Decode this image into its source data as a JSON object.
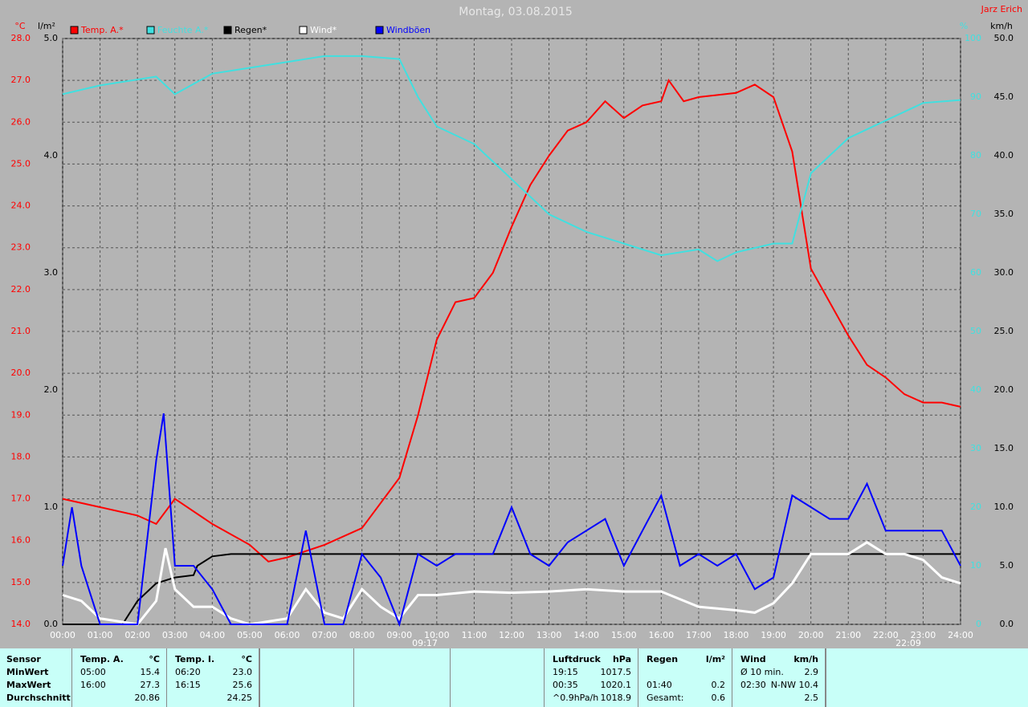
{
  "chart_data": {
    "type": "line",
    "title": "Montag, 03.08.2015",
    "author": "Jarz Erich",
    "xlim": [
      0,
      24
    ],
    "xticks": [
      {
        "value": 0,
        "label": "00:00"
      },
      {
        "value": 1,
        "label": "01:00"
      },
      {
        "value": 2,
        "label": "02:00"
      },
      {
        "value": 3,
        "label": "03:00"
      },
      {
        "value": 4,
        "label": "04:00"
      },
      {
        "value": 5,
        "label": "05:00"
      },
      {
        "value": 6,
        "label": "06:00"
      },
      {
        "value": 7,
        "label": "07:00"
      },
      {
        "value": 8,
        "label": "08:00"
      },
      {
        "value": 9,
        "label": "09:00"
      },
      {
        "value": 10,
        "label": "10:00"
      },
      {
        "value": 11,
        "label": "11:00"
      },
      {
        "value": 12,
        "label": "12:00"
      },
      {
        "value": 13,
        "label": "13:00"
      },
      {
        "value": 14,
        "label": "14:00"
      },
      {
        "value": 15,
        "label": "15:00"
      },
      {
        "value": 16,
        "label": "16:00"
      },
      {
        "value": 17,
        "label": "17:00"
      },
      {
        "value": 18,
        "label": "18:00"
      },
      {
        "value": 19,
        "label": "19:00"
      },
      {
        "value": 20,
        "label": "20:00"
      },
      {
        "value": 21,
        "label": "21:00"
      },
      {
        "value": 22,
        "label": "22:00"
      },
      {
        "value": 23,
        "label": "23:00"
      },
      {
        "value": 24,
        "label": "24:00"
      }
    ],
    "grid": true,
    "sun_markers": [
      "09:17",
      "22:09"
    ],
    "axes": {
      "temp": {
        "label": "°C",
        "color": "#ff0000",
        "lim": [
          14,
          28
        ],
        "ticks": [
          {
            "value": 14,
            "label": "14.0"
          },
          {
            "value": 15,
            "label": "15.0"
          },
          {
            "value": 16,
            "label": "16.0"
          },
          {
            "value": 17,
            "label": "17.0"
          },
          {
            "value": 18,
            "label": "18.0"
          },
          {
            "value": 19,
            "label": "19.0"
          },
          {
            "value": 20,
            "label": "20.0"
          },
          {
            "value": 21,
            "label": "21.0"
          },
          {
            "value": 22,
            "label": "22.0"
          },
          {
            "value": 23,
            "label": "23.0"
          },
          {
            "value": 24,
            "label": "24.0"
          },
          {
            "value": 25,
            "label": "25.0"
          },
          {
            "value": 26,
            "label": "26.0"
          },
          {
            "value": 27,
            "label": "27.0"
          },
          {
            "value": 28,
            "label": "28.0"
          }
        ]
      },
      "rain": {
        "label": "l/m²",
        "color": "#000000",
        "lim": [
          0,
          5
        ],
        "ticks": [
          {
            "value": 0,
            "label": "0.0"
          },
          {
            "value": 1,
            "label": "1.0"
          },
          {
            "value": 2,
            "label": "2.0"
          },
          {
            "value": 3,
            "label": "3.0"
          },
          {
            "value": 4,
            "label": "4.0"
          },
          {
            "value": 5,
            "label": "5.0"
          }
        ]
      },
      "hum": {
        "label": "%",
        "color": "#40e0e0",
        "lim": [
          0,
          100
        ],
        "ticks": [
          0,
          10,
          20,
          30,
          40,
          50,
          60,
          70,
          80,
          90,
          100
        ]
      },
      "wind": {
        "label": "km/h",
        "color": "#000000",
        "lim": [
          0,
          50
        ],
        "ticks": [
          {
            "value": 0,
            "label": "0.0"
          },
          {
            "value": 5,
            "label": "5.0"
          },
          {
            "value": 10,
            "label": "10.0"
          },
          {
            "value": 15,
            "label": "15.0"
          },
          {
            "value": 20,
            "label": "20.0"
          },
          {
            "value": 25,
            "label": "25.0"
          },
          {
            "value": 30,
            "label": "30.0"
          },
          {
            "value": 35,
            "label": "35.0"
          },
          {
            "value": 40,
            "label": "40.0"
          },
          {
            "value": 45,
            "label": "45.0"
          },
          {
            "value": 50,
            "label": "50.0"
          }
        ]
      }
    },
    "series": [
      {
        "name": "Temp. A.*",
        "color": "#ff0000",
        "axis": "temp",
        "x": [
          0,
          1,
          2,
          2.5,
          3,
          4,
          5,
          5.5,
          6,
          7,
          8,
          9,
          9.5,
          10,
          10.5,
          11,
          11.5,
          12,
          12.5,
          13,
          13.5,
          14,
          14.5,
          15,
          15.5,
          16,
          16.2,
          16.6,
          17,
          18,
          18.5,
          19,
          19.5,
          20,
          20.5,
          21,
          21.5,
          22,
          22.5,
          23,
          23.5,
          24
        ],
        "values": [
          17.0,
          16.8,
          16.6,
          16.4,
          17.0,
          16.4,
          15.9,
          15.5,
          15.6,
          15.9,
          16.3,
          17.5,
          19.0,
          20.8,
          21.7,
          21.8,
          22.4,
          23.5,
          24.5,
          25.2,
          25.8,
          26.0,
          26.5,
          26.1,
          26.4,
          26.5,
          27.0,
          26.5,
          26.6,
          26.7,
          26.9,
          26.6,
          25.3,
          22.5,
          21.7,
          20.9,
          20.2,
          19.9,
          19.5,
          19.3,
          19.3,
          19.2
        ]
      },
      {
        "name": "Feuchte A.*",
        "color": "#40e0e0",
        "axis": "hum",
        "x": [
          0,
          1,
          2,
          2.5,
          3,
          4,
          5,
          6,
          7,
          8,
          9,
          9.5,
          10,
          11,
          12,
          13,
          14,
          15,
          16,
          17,
          17.5,
          18,
          19,
          19.5,
          20,
          20.5,
          21,
          22,
          23,
          24
        ],
        "values": [
          90.5,
          92,
          93,
          93.5,
          90.5,
          94,
          95,
          96,
          97,
          97,
          96.5,
          90,
          85,
          82,
          76,
          70,
          67,
          65,
          63,
          64,
          62,
          63.5,
          65,
          65,
          77,
          80,
          83,
          86,
          89,
          89.5
        ]
      },
      {
        "name": "Regen*",
        "color": "#000000",
        "axis": "rain",
        "x": [
          0,
          1.6,
          2,
          2.5,
          3,
          3.5,
          3.6,
          4,
          4.5,
          5,
          24
        ],
        "values": [
          0,
          0,
          0.2,
          0.35,
          0.4,
          0.42,
          0.5,
          0.58,
          0.6,
          0.6,
          0.6
        ]
      },
      {
        "name": "Wind*",
        "color": "#ffffff",
        "axis": "wind",
        "x": [
          0,
          0.5,
          1,
          2,
          2.5,
          2.75,
          3,
          3.5,
          4,
          4.5,
          5,
          6,
          6.5,
          7,
          7.5,
          8,
          8.5,
          9,
          9.5,
          10,
          11,
          12,
          13,
          14,
          15,
          16,
          17,
          18,
          18.5,
          19,
          19.5,
          20,
          21,
          21.5,
          22,
          22.5,
          23,
          23.5,
          24
        ],
        "values": [
          2.5,
          2,
          0.5,
          0,
          2,
          6.5,
          3,
          1.5,
          1.5,
          0.5,
          0,
          0.5,
          3,
          1,
          0.5,
          3,
          1.5,
          0.5,
          2.5,
          2.5,
          2.8,
          2.7,
          2.8,
          3,
          2.8,
          2.8,
          1.5,
          1.2,
          1,
          1.8,
          3.5,
          6,
          6,
          7,
          6,
          6,
          5.5,
          4,
          3.5
        ]
      },
      {
        "name": "Windböen",
        "color": "#0000ff",
        "axis": "wind",
        "x": [
          0,
          0.25,
          0.5,
          1,
          2,
          2.5,
          2.7,
          3,
          3.5,
          4,
          4.5,
          5,
          6,
          6.5,
          7,
          7.5,
          8,
          8.5,
          9,
          9.5,
          10,
          10.5,
          11,
          11.5,
          12,
          12.5,
          13,
          13.5,
          14,
          14.5,
          15,
          15.5,
          16,
          16.5,
          17,
          17.5,
          18,
          18.5,
          19,
          19.5,
          20,
          20.5,
          21,
          21.5,
          22,
          22.5,
          23,
          23.5,
          24
        ],
        "values": [
          5,
          10,
          5,
          0,
          0,
          14,
          18,
          5,
          5,
          3,
          0,
          0,
          0,
          8,
          0,
          0,
          6,
          4,
          0,
          6,
          5,
          6,
          6,
          6,
          10,
          6,
          5,
          7,
          8,
          9,
          5,
          8,
          11,
          5,
          6,
          5,
          6,
          3,
          4,
          11,
          10,
          9,
          9,
          12,
          8,
          8,
          8,
          8,
          5
        ]
      }
    ]
  },
  "table": {
    "sections": [
      {
        "rows": [
          [
            "Sensor"
          ],
          [
            "MinWert"
          ],
          [
            "MaxWert"
          ],
          [
            "Durchschnitt"
          ]
        ]
      },
      {
        "rows": [
          [
            "Temp. A.",
            "°C"
          ],
          [
            "05:00",
            "15.4"
          ],
          [
            "16:00",
            "27.3"
          ],
          [
            null,
            "20.86"
          ]
        ]
      },
      {
        "rows": [
          [
            "Temp. I.",
            "°C"
          ],
          [
            "06:20",
            "23.0"
          ],
          [
            "16:15",
            "25.6"
          ],
          [
            null,
            "24.25"
          ]
        ]
      },
      {
        "rows": [
          [
            "Luftdruck",
            "hPa"
          ],
          [
            "19:15",
            "1017.5"
          ],
          [
            "00:35",
            "1020.1"
          ],
          [
            "^0.9hPa/h",
            "1018.9"
          ]
        ]
      },
      {
        "rows": [
          [
            "Regen",
            "l/m²"
          ],
          [
            null,
            null
          ],
          [
            "01:40",
            "0.2"
          ],
          [
            "Gesamt:",
            "0.6"
          ]
        ]
      },
      {
        "rows": [
          [
            "Wind",
            "km/h"
          ],
          [
            "Ø 10 min.",
            "2.9"
          ],
          [
            "02:30",
            "N-NW",
            "10.4"
          ],
          [
            null,
            "2.5"
          ]
        ]
      }
    ]
  }
}
